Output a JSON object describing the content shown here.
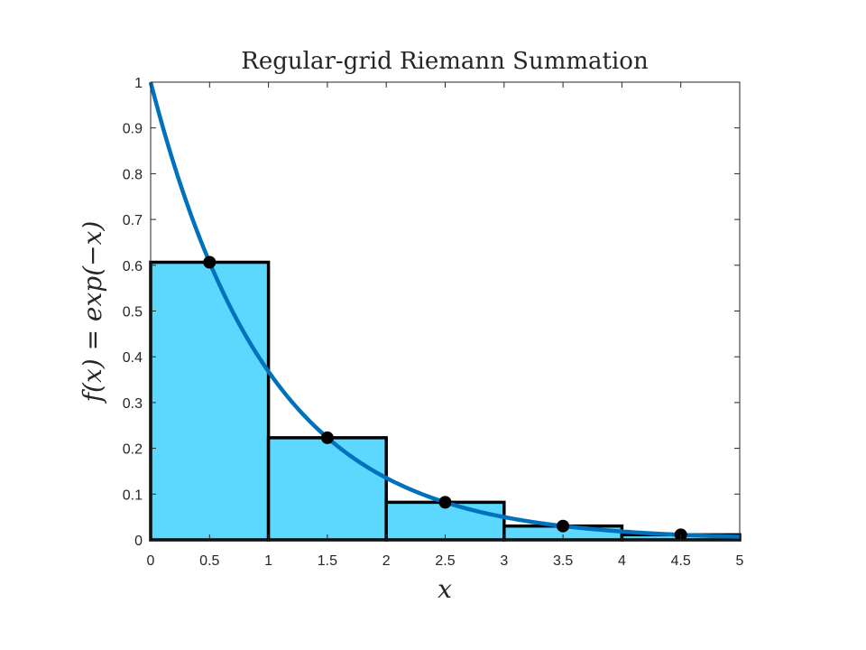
{
  "chart_data": {
    "type": "bar",
    "title": "Regular-grid Riemann Summation",
    "xlabel": "x",
    "ylabel": "f(x) = exp(−x)",
    "xlim": [
      0,
      5
    ],
    "ylim": [
      0,
      1
    ],
    "grid": false,
    "x_ticks": [
      "0",
      "0.5",
      "1",
      "1.5",
      "2",
      "2.5",
      "3",
      "3.5",
      "4",
      "4.5",
      "5"
    ],
    "y_ticks": [
      "0",
      "0.1",
      "0.2",
      "0.3",
      "0.4",
      "0.5",
      "0.6",
      "0.7",
      "0.8",
      "0.9",
      "1"
    ],
    "bins": [
      {
        "x0": 0,
        "x1": 1,
        "height": 0.6065
      },
      {
        "x0": 1,
        "x1": 2,
        "height": 0.2231
      },
      {
        "x0": 2,
        "x1": 3,
        "height": 0.0821
      },
      {
        "x0": 3,
        "x1": 4,
        "height": 0.0302
      },
      {
        "x0": 4,
        "x1": 5,
        "height": 0.0111
      }
    ],
    "midpoints": {
      "x": [
        0.5,
        1.5,
        2.5,
        3.5,
        4.5
      ],
      "y": [
        0.6065,
        0.2231,
        0.0821,
        0.0302,
        0.0111
      ]
    },
    "curve": {
      "function": "exp(-x)",
      "x": [
        0,
        0.25,
        0.5,
        0.75,
        1,
        1.25,
        1.5,
        1.75,
        2,
        2.25,
        2.5,
        2.75,
        3,
        3.25,
        3.5,
        3.75,
        4,
        4.25,
        4.5,
        4.75,
        5
      ],
      "y": [
        1,
        0.7788,
        0.6065,
        0.4724,
        0.3679,
        0.2865,
        0.2231,
        0.1738,
        0.1353,
        0.1054,
        0.0821,
        0.0639,
        0.0498,
        0.0388,
        0.0302,
        0.0235,
        0.0183,
        0.0143,
        0.0111,
        0.0087,
        0.0067
      ]
    },
    "colors": {
      "bar_fill": "#5cd8ff",
      "bar_edge": "#000000",
      "curve": "#0072bd",
      "marker": "#000000"
    }
  }
}
